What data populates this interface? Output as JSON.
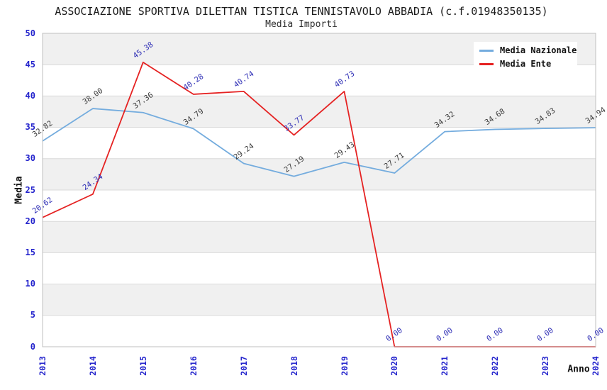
{
  "header": {
    "title": "ASSOCIAZIONE SPORTIVA DILETTAN TISTICA TENNISTAVOLO ABBADIA (c.f.01948350135)",
    "subtitle": "Media Importi"
  },
  "chart_data": {
    "type": "line",
    "x": [
      "2013",
      "2014",
      "2015",
      "2016",
      "2017",
      "2018",
      "2019",
      "2020",
      "2021",
      "2022",
      "2023",
      "2024"
    ],
    "xlabel": "Anno",
    "ylabel": "Media",
    "ylim": [
      0,
      50
    ],
    "yticks": [
      0,
      5,
      10,
      15,
      20,
      25,
      30,
      35,
      40,
      45,
      50
    ],
    "grid": "horizontal-bands",
    "legend_position": "top-right",
    "colors": {
      "band_white": "#ffffff",
      "band_gray": "#f0f0f0",
      "gridline": "#d9d9d9",
      "frame": "#bfbfbf",
      "tick_label": "#2323cc",
      "axis_title": "#111111"
    },
    "series": [
      {
        "name": "Media Nazionale",
        "color": "#74ACDE",
        "label_color": "#3c3c3c",
        "values": [
          32.82,
          38.0,
          37.36,
          34.79,
          29.24,
          27.19,
          29.43,
          27.71,
          34.32,
          34.68,
          34.83,
          34.94
        ],
        "labels": [
          "32.82",
          "38.00",
          "37.36",
          "34.79",
          "29.24",
          "27.19",
          "29.43",
          "27.71",
          "34.32",
          "34.68",
          "34.83",
          "34.94"
        ]
      },
      {
        "name": "Media Ente",
        "color": "#E52222",
        "label_color": "#2a2ab4",
        "values": [
          20.62,
          24.34,
          45.38,
          40.28,
          40.74,
          33.77,
          40.73,
          0.0,
          0.0,
          0.0,
          0.0,
          0.0
        ],
        "labels": [
          "20.62",
          "24.34",
          "45.38",
          "40.28",
          "40.74",
          "33.77",
          "40.73",
          "0.00",
          "0.00",
          "0.00",
          "0.00",
          "0.00"
        ]
      }
    ]
  }
}
